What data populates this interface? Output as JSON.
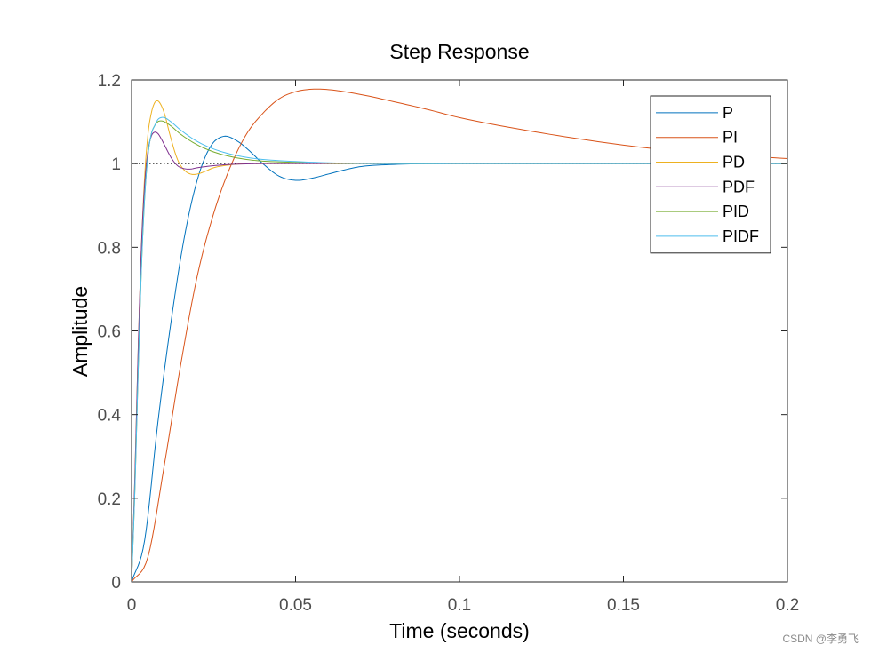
{
  "chart_data": {
    "type": "line",
    "title": "Step Response",
    "xlabel": "Time (seconds)",
    "ylabel": "Amplitude",
    "xlim": [
      0,
      0.2
    ],
    "ylim": [
      0,
      1.2
    ],
    "xticks": [
      0,
      0.05,
      0.1,
      0.15,
      0.2
    ],
    "xtick_labels": [
      "0",
      "0.05",
      "0.1",
      "0.15",
      "0.2"
    ],
    "yticks": [
      0,
      0.2,
      0.4,
      0.6,
      0.8,
      1,
      1.2
    ],
    "ytick_labels": [
      "0",
      "0.2",
      "0.4",
      "0.6",
      "0.8",
      "1",
      "1.2"
    ],
    "grid": false,
    "legend_position": "top-right",
    "reference_line": {
      "y": 1,
      "style": "dotted",
      "color": "#000000"
    },
    "series": [
      {
        "name": "P",
        "color": "#0072BD",
        "x": [
          0,
          0.004,
          0.008,
          0.012,
          0.016,
          0.02,
          0.024,
          0.028,
          0.032,
          0.036,
          0.04,
          0.045,
          0.05,
          0.055,
          0.06,
          0.065,
          0.07,
          0.08,
          0.09,
          0.1,
          0.12,
          0.15,
          0.2
        ],
        "y": [
          0,
          0.1,
          0.38,
          0.62,
          0.82,
          0.96,
          1.04,
          1.065,
          1.055,
          1.03,
          1.0,
          0.97,
          0.96,
          0.965,
          0.975,
          0.985,
          0.993,
          0.998,
          1.0,
          1.0,
          1.0,
          1.0,
          1.0
        ]
      },
      {
        "name": "PI",
        "color": "#D95319",
        "x": [
          0,
          0.005,
          0.01,
          0.015,
          0.02,
          0.025,
          0.03,
          0.035,
          0.04,
          0.045,
          0.05,
          0.055,
          0.06,
          0.07,
          0.08,
          0.09,
          0.1,
          0.12,
          0.14,
          0.16,
          0.18,
          0.2
        ],
        "y": [
          0,
          0.06,
          0.28,
          0.52,
          0.73,
          0.88,
          0.99,
          1.07,
          1.12,
          1.155,
          1.172,
          1.178,
          1.177,
          1.165,
          1.148,
          1.13,
          1.11,
          1.08,
          1.055,
          1.035,
          1.022,
          1.012
        ]
      },
      {
        "name": "PD",
        "color": "#EDB120",
        "x": [
          0,
          0.001,
          0.002,
          0.003,
          0.004,
          0.005,
          0.006,
          0.007,
          0.008,
          0.009,
          0.01,
          0.012,
          0.014,
          0.016,
          0.018,
          0.02,
          0.022,
          0.025,
          0.03,
          0.035,
          0.04,
          0.05,
          0.06,
          0.1,
          0.2
        ],
        "y": [
          0,
          0.25,
          0.55,
          0.8,
          0.97,
          1.07,
          1.12,
          1.145,
          1.15,
          1.14,
          1.12,
          1.06,
          1.01,
          0.985,
          0.975,
          0.975,
          0.98,
          0.99,
          0.997,
          1.0,
          1.0,
          1.0,
          1.0,
          1.0,
          1.0
        ]
      },
      {
        "name": "PDF",
        "color": "#7E2F8E",
        "x": [
          0,
          0.001,
          0.002,
          0.003,
          0.004,
          0.005,
          0.006,
          0.007,
          0.008,
          0.009,
          0.01,
          0.012,
          0.014,
          0.016,
          0.018,
          0.02,
          0.025,
          0.03,
          0.04,
          0.05,
          0.1,
          0.2
        ],
        "y": [
          0,
          0.25,
          0.55,
          0.8,
          0.95,
          1.03,
          1.065,
          1.075,
          1.072,
          1.06,
          1.045,
          1.015,
          0.995,
          0.988,
          0.987,
          0.99,
          0.995,
          0.998,
          1.0,
          1.0,
          1.0,
          1.0
        ]
      },
      {
        "name": "PID",
        "color": "#77AC30",
        "x": [
          0,
          0.001,
          0.002,
          0.003,
          0.004,
          0.005,
          0.006,
          0.007,
          0.008,
          0.009,
          0.01,
          0.012,
          0.015,
          0.02,
          0.025,
          0.03,
          0.035,
          0.04,
          0.05,
          0.06,
          0.08,
          0.1,
          0.15,
          0.2
        ],
        "y": [
          0,
          0.22,
          0.5,
          0.75,
          0.92,
          1.02,
          1.07,
          1.09,
          1.1,
          1.102,
          1.1,
          1.09,
          1.07,
          1.045,
          1.028,
          1.017,
          1.01,
          1.006,
          1.003,
          1.001,
          1.0,
          1.0,
          1.0,
          1.0
        ]
      },
      {
        "name": "PIDF",
        "color": "#4DBEEE",
        "x": [
          0,
          0.001,
          0.002,
          0.003,
          0.004,
          0.005,
          0.006,
          0.007,
          0.008,
          0.009,
          0.01,
          0.012,
          0.015,
          0.02,
          0.025,
          0.03,
          0.035,
          0.04,
          0.05,
          0.06,
          0.08,
          0.1,
          0.15,
          0.2
        ],
        "y": [
          0,
          0.22,
          0.5,
          0.75,
          0.92,
          1.02,
          1.07,
          1.09,
          1.105,
          1.11,
          1.11,
          1.1,
          1.08,
          1.053,
          1.035,
          1.023,
          1.015,
          1.01,
          1.005,
          1.002,
          1.0,
          1.0,
          1.0,
          1.0
        ]
      }
    ]
  },
  "watermark": "CSDN @李勇飞"
}
